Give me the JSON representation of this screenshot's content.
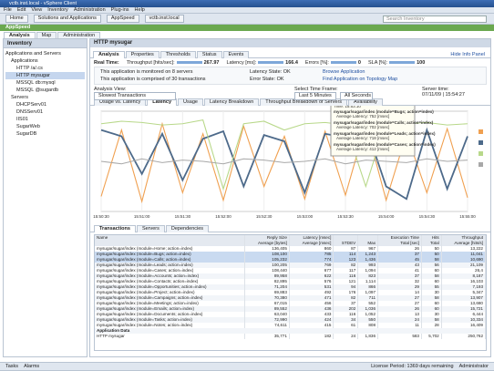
{
  "window": {
    "title": "vctb.inst.local - vSphere Client",
    "menu": [
      "File",
      "Edit",
      "View",
      "Inventory",
      "Administration",
      "Plug-ins",
      "Help"
    ]
  },
  "toolbar": {
    "breadcrumbs": [
      "Home",
      "Solutions and Applications",
      "AppSpeed",
      "vctb.inst.local"
    ],
    "search": "Search Inventory"
  },
  "app_tab": "AppSpeed",
  "sub_tabs": [
    "Analysis",
    "Map",
    "Administration"
  ],
  "inventory": {
    "title": "Inventory",
    "tree": [
      {
        "label": "Applications and Servers",
        "children": [
          {
            "label": "Applications",
            "children": [
              {
                "label": "HTTP /a/.cs"
              },
              {
                "label": "HTTP mysugar"
              },
              {
                "label": "MSSQL db:mysql"
              },
              {
                "label": "MSSQL @sugardb"
              }
            ]
          },
          {
            "label": "Servers",
            "children": [
              {
                "label": "DHCPServ01"
              },
              {
                "label": "DNSServ01"
              },
              {
                "label": "IIS01"
              },
              {
                "label": "SugarWeb"
              },
              {
                "label": "SugarDB"
              }
            ]
          }
        ]
      }
    ]
  },
  "panel": {
    "title": "HTTP mysugar",
    "tabs": [
      "Analysis",
      "Properties",
      "Thresholds",
      "Status",
      "Events"
    ],
    "hide_info": "Hide Info Panel",
    "realtime": {
      "label": "Real Time:",
      "metrics": [
        {
          "name": "Throughput [hits/sec]:",
          "value": "267.97"
        },
        {
          "name": "Latency [ms]:",
          "value": "166.4"
        },
        {
          "name": "Errors [%]:",
          "value": "0"
        },
        {
          "name": "SLA [%]:",
          "value": "100"
        }
      ]
    },
    "info": [
      "This application is monitored on 8 servers",
      "This application is comprised of 30 transactions"
    ],
    "states": [
      "Latency State: OK",
      "Error State: OK"
    ],
    "links": [
      "Browse Application",
      "Find Application on Topology Map"
    ]
  },
  "analysis": {
    "view_label": "Analysis View:",
    "view": "Slowest Transactions",
    "time_label": "Select Time Frame:",
    "time": "Last 5 Minutes",
    "granularity": "All Seconds",
    "server_time_label": "Server time:",
    "server_time": "07/11/09 | 15:54:27"
  },
  "chart_tabs": [
    "Usage vs. Latency",
    "Latency",
    "Usage",
    "Latency Breakdown",
    "Throughput Breakdown of Servers",
    "Availability"
  ],
  "chart_data": {
    "type": "line",
    "categories": [
      "15:50:30",
      null,
      "15:51:00",
      null,
      "15:51:30",
      null,
      "15:52:00",
      null,
      "15:52:30",
      null,
      "15:53:00",
      null,
      "15:53:30",
      null,
      "15:54:00",
      null,
      "15:54:30",
      null,
      "15:55:00"
    ],
    "ylim": [
      0,
      800
    ],
    "series": [
      {
        "name": "mysugar/sugar/index (module=Bugs; action=index)",
        "color": "#f0a050",
        "values": [
          120,
          650,
          80,
          700,
          150,
          620,
          90,
          680,
          200,
          600,
          100,
          640,
          130,
          700,
          90,
          620,
          150,
          660,
          110
        ]
      },
      {
        "name": "mysugar/sugar/index (module=Calls; action=index)",
        "color": "#4d6a8a",
        "values": [
          650,
          600,
          300,
          620,
          250,
          580,
          640,
          200,
          610,
          560,
          150,
          620,
          590,
          680,
          200,
          100,
          650,
          180,
          600
        ]
      },
      {
        "name": "mysugar/sugar/index (module=Leads; action=index)",
        "color": "#b8d88a",
        "values": [
          700,
          720,
          710,
          690,
          700,
          730,
          180,
          700,
          720,
          650,
          700,
          710,
          690,
          200,
          720,
          700,
          710,
          690,
          700
        ]
      },
      {
        "name": "mysugar/sugar/index (module=Cases; action=index)",
        "color": "#a8a8a8",
        "values": [
          400,
          380,
          420,
          390,
          410,
          400,
          380,
          420,
          410,
          390,
          400,
          420,
          380,
          410,
          400,
          390,
          420,
          400,
          410
        ]
      }
    ]
  },
  "tooltip": {
    "time": "Time: 15:53:10",
    "values": [
      "Average Latency: 752 [msec]",
      "Average Latency: 702 [msec]",
      "Average Latency: 718 [msec]",
      "Average Latency: 412 [msec]"
    ]
  },
  "bottom_tabs": [
    "Transactions",
    "Servers",
    "Dependencies"
  ],
  "table": {
    "columns": [
      {
        "group": "Name"
      },
      {
        "group": "Reply Size",
        "sub": "Average [bytes]"
      },
      {
        "group": "Latency [msec]",
        "sub": "Average [msec]"
      },
      {
        "sub": "STDEV"
      },
      {
        "sub": "Max"
      },
      {
        "group": "Execution Time",
        "sub": "Total [sec]"
      },
      {
        "group": "Hits",
        "sub": "Total"
      },
      {
        "group": "Throughput",
        "sub": "Average [hits/s]"
      }
    ],
    "rows": [
      [
        "mysugar/sugar/index (module=Home; action=index)",
        "136,405",
        "860",
        "87",
        "967",
        "26",
        "50",
        "13,222"
      ],
      [
        "mysugar/sugar/index (module=Bugs; action=index)",
        "108,100",
        "785",
        "114",
        "1,243",
        "37",
        "50",
        "11,041"
      ],
      [
        "mysugar/sugar/index (module=Calls; action=index)",
        "105,232",
        "774",
        "123",
        "1,436",
        "45",
        "58",
        "10,690"
      ],
      [
        "mysugar/sugar/index (module=Leads; action=index)",
        "100,205",
        "769",
        "82",
        "993",
        "43",
        "56",
        "21,109"
      ],
      [
        "mysugar/sugar/index (module=Cases; action=index)",
        "108,440",
        "677",
        "117",
        "1,094",
        "41",
        "60",
        "26,4"
      ],
      [
        "mysugar/sugar/index (module=Accounts; action=index)",
        "89,958",
        "622",
        "116",
        "823",
        "37",
        "58",
        "8,187"
      ],
      [
        "mysugar/sugar/index (module=Contacts; action=index)",
        "82,895",
        "576",
        "121",
        "1,114",
        "32",
        "60",
        "16,103"
      ],
      [
        "mysugar/sugar/index (module=Opportunities; action=index)",
        "71,204",
        "531",
        "94",
        "866",
        "29",
        "55",
        "7,193"
      ],
      [
        "mysugar/sugar/index (module=Project; action=index)",
        "69,883",
        "492",
        "176",
        "1,097",
        "14",
        "30",
        "5,347"
      ],
      [
        "mysugar/sugar/index (module=Campaigns; action=index)",
        "70,380",
        "471",
        "82",
        "711",
        "27",
        "58",
        "13,907"
      ],
      [
        "mysugar/sugar/index (module=Meetings; action=index)",
        "67,015",
        "456",
        "37",
        "552",
        "27",
        "60",
        "13,680"
      ],
      [
        "mysugar/sugar/index (module=Emails; action=index)",
        "89,552",
        "436",
        "202",
        "1,036",
        "26",
        "60",
        "15,721"
      ],
      [
        "mysugar/sugar/index (module=Documents; action=index)",
        "63,040",
        "433",
        "116",
        "1,052",
        "13",
        "30",
        "6,444"
      ],
      [
        "mysugar/sugar/index (module=Tasks; action=index)",
        "72,990",
        "424",
        "34",
        "550",
        "24",
        "58",
        "10,334"
      ],
      [
        "mysugar/sugar/index (module=Notes; action=index)",
        "74,611",
        "415",
        "61",
        "808",
        "11",
        "28",
        "16,409"
      ]
    ],
    "section": "Application Data",
    "summary": [
      "HTTP mysugar",
      "35,771",
      "182",
      "24",
      "1,836",
      "583",
      "5,702",
      "250,762"
    ]
  },
  "status": {
    "tasks": "Tasks",
    "alarms": "Alarms",
    "license": "License Period: 1369 days remaining",
    "user": "Administrator"
  }
}
